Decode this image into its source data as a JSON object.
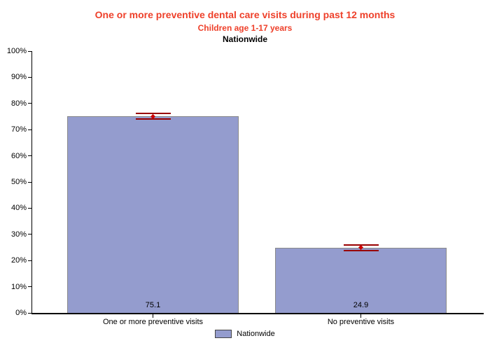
{
  "chart_data": {
    "type": "bar",
    "title": "One or more preventive dental care visits during past 12 months",
    "subtitle": "Children age 1-17 years",
    "region_line": "Nationwide",
    "categories": [
      "One or more preventive visits",
      "No preventive visits"
    ],
    "series": [
      {
        "name": "Nationwide",
        "values": [
          75.1,
          24.9
        ],
        "ci_low": [
          74.1,
          23.9
        ],
        "ci_high": [
          76.1,
          25.9
        ]
      }
    ],
    "value_labels": [
      "75.1",
      "24.9"
    ],
    "xlabel": "",
    "ylabel": "",
    "ylim": [
      0,
      100
    ],
    "ytick_step": 10,
    "ytick_suffix": "%",
    "grid": false,
    "legend_position": "bottom",
    "colors": {
      "bar_fill": "#949CCE",
      "bar_border": "#8A8A8A",
      "title_red": "#EE402A",
      "error_bar": "#990000",
      "error_marker": "#CC0000",
      "axis_black": "#000000"
    }
  }
}
